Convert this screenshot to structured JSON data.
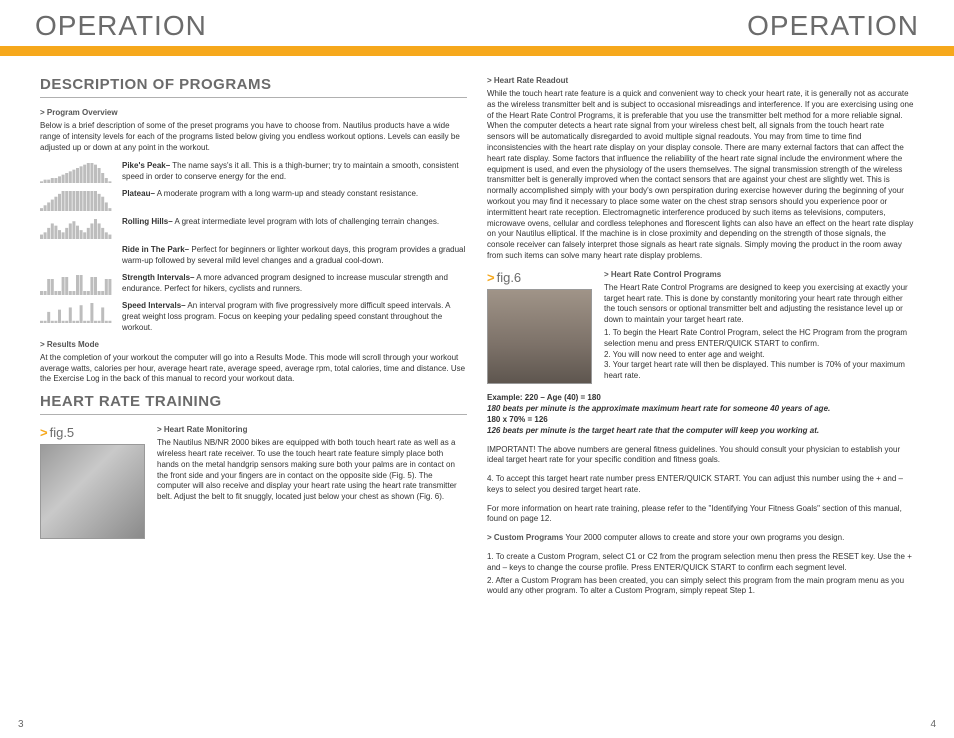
{
  "header": {
    "left": "OPERATION",
    "right": "OPERATION"
  },
  "colors": {
    "accent": "#f6a81c",
    "heading": "#6b6b6b",
    "text": "#333333",
    "rule": "#b0b0b0"
  },
  "left": {
    "title1": "DESCRIPTION OF PROGRAMS",
    "sub1": "> Program Overview",
    "intro": "Below is a brief description of some of the preset programs you have to choose from. Nautilus products have a wide range of intensity levels for each of the programs listed below giving you endless workout options. Levels can easily be adjusted up or down at any point in the workout.",
    "programs": [
      {
        "name": "Pike's Peak–",
        "desc": " The name says's it all. This is a thigh-burner; try to maintain a smooth, consistent speed in order to conserve energy for the end.",
        "bars": [
          1,
          2,
          2,
          3,
          3,
          4,
          5,
          6,
          7,
          8,
          9,
          10,
          11,
          12,
          12,
          11,
          9,
          6,
          3,
          1
        ]
      },
      {
        "name": "Plateau–",
        "desc": " A moderate program with a long warm-up and steady constant resistance.",
        "bars": [
          1,
          2,
          3,
          4,
          5,
          6,
          7,
          7,
          7,
          7,
          7,
          7,
          7,
          7,
          7,
          7,
          6,
          5,
          3,
          1
        ]
      },
      {
        "name": "Rolling Hills–",
        "desc": " A great intermediate level program with lots of challenging terrain changes.",
        "bars": [
          2,
          3,
          5,
          7,
          6,
          4,
          3,
          5,
          7,
          8,
          6,
          4,
          3,
          5,
          7,
          9,
          7,
          5,
          3,
          2
        ]
      },
      {
        "name": "Ride in The Park–",
        "desc": " Perfect for beginners or lighter workout days, this program provides a gradual warm-up followed by several mild level changes and a gradual cool-down.",
        "bars": []
      },
      {
        "name": "Strength Intervals–",
        "desc": " A more advanced program designed to increase muscular strength and endurance. Perfect for hikers, cyclists and runners.",
        "bars": [
          2,
          2,
          8,
          8,
          2,
          2,
          9,
          9,
          2,
          2,
          10,
          10,
          2,
          2,
          9,
          9,
          2,
          2,
          8,
          8
        ]
      },
      {
        "name": "Speed Intervals–",
        "desc": " An interval program with five progressively more difficult speed intervals. A great weight loss program. Focus on keeping your pedaling speed constant throughout the workout.",
        "bars": [
          1,
          1,
          5,
          1,
          1,
          6,
          1,
          1,
          7,
          1,
          1,
          8,
          1,
          1,
          9,
          1,
          1,
          7,
          1,
          1
        ]
      }
    ],
    "sub2": "> Results Mode",
    "results": "At the completion of your workout the computer will go into a Results Mode. This mode will scroll through your workout average watts, calories per hour, average heart rate, average speed, average rpm, total calories, time and distance. Use the Exercise Log in the back of this manual to record your workout data.",
    "title2": "HEART RATE TRAINING",
    "fig5": "fig.5",
    "sub3": "> Heart Rate Monitoring",
    "hr_monitor": "The Nautilus NB/NR 2000 bikes are equipped with both touch heart rate as well as a wireless heart rate receiver. To use the touch heart rate feature simply place both hands on the metal handgrip sensors making sure both your palms are in contact on the front side and your fingers are in contact on the opposite side (Fig. 5). The computer will also receive and display your heart rate using the heart rate transmitter belt. Adjust the belt to fit snuggly, located just below your chest as shown (Fig. 6)."
  },
  "right": {
    "sub1": "> Heart Rate Readout",
    "readout": "While the touch heart rate feature is a quick and convenient way to check your heart rate, it is generally not as accurate as the wireless transmitter belt and is subject to occasional misreadings and interference. If you are exercising using one of the Heart Rate Control Programs, it is preferable that you use the transmitter belt method for a more reliable signal. When the computer detects a heart rate signal from your wireless chest belt, all signals from the touch heart rate sensors will be automatically disregarded to avoid multiple signal readouts. You may from time to time find inconsistencies with the heart rate display on your display console. There are many external factors that can affect the heart rate display. Some factors that influence the reliability of the heart rate signal include the environment where the equipment is used, and even the physiology of the users themselves. The signal transmission strength of the wireless transmitter belt is generally improved when the contact sensors that are against your chest are slightly wet. This is normally accomplished simply with your body's own perspiration during exercise however during the beginning of your workout you may find it necessary to place some water on the chest strap sensors should you experience poor or intermittent heart rate reception. Electromagnetic interference produced by such items as televisions, computers, microwave ovens, cellular and cordless telephones and florescent lights can also have an effect on the heart rate display on your Nautilus elliptical. If the machine is in close proximity and depending on the strength of those signals, the console receiver can falsely interpret those signals as heart rate signals. Simply moving the product in the room away from such items can solve many heart rate display problems.",
    "fig6": "fig.6",
    "sub2": "> Heart Rate Control Programs",
    "control": "The Heart Rate Control Programs are designed to keep you exercising at exactly your target heart rate. This is done by constantly monitoring your heart rate through either the touch sensors or optional transmitter belt and adjusting the resistance level up or down to maintain your target heart rate.",
    "steps": [
      "1. To begin the Heart Rate Control Program, select the HC Program from the program selection menu and press ENTER/QUICK START to confirm.",
      "2. You will now need to enter age and weight.",
      "3. Your target heart rate will then be displayed. This number is 70% of your maximum heart rate."
    ],
    "example_label": "Example:  220 – Age (40) = 180",
    "example_l1": "180 beats per minute is the approximate maximum heart rate for someone 40 years of age.",
    "example_l2": "180 x 70% = 126",
    "example_l3": "126 beats per minute is the target heart rate that the computer will keep you working at.",
    "important": "IMPORTANT!  The above numbers are general fitness guidelines. You should consult your physician to establish your ideal target heart rate for your specific condition and fitness goals.",
    "step4": "4.  To accept this target heart rate number press ENTER/QUICK START. You can adjust this number using the + and – keys to select you desired target heart rate.",
    "more_info": "For more information on heart rate training, please refer to the \"Identifying Your Fitness Goals\" section of this manual, found on page 12.",
    "sub3": "> Custom Programs",
    "custom_intro": "Your 2000 computer allows to create and store your own programs you design.",
    "custom1": "1. To create a Custom Program, select C1 or C2 from the program selection menu then press the RESET key. Use the + and – keys to change the course profile. Press ENTER/QUICK START to confirm each segment level.",
    "custom2": "2. After a Custom Program has been created, you can simply select this program from the main program menu as you would any other program. To alter a Custom Program, simply repeat Step 1."
  },
  "page_left": "3",
  "page_right": "4"
}
